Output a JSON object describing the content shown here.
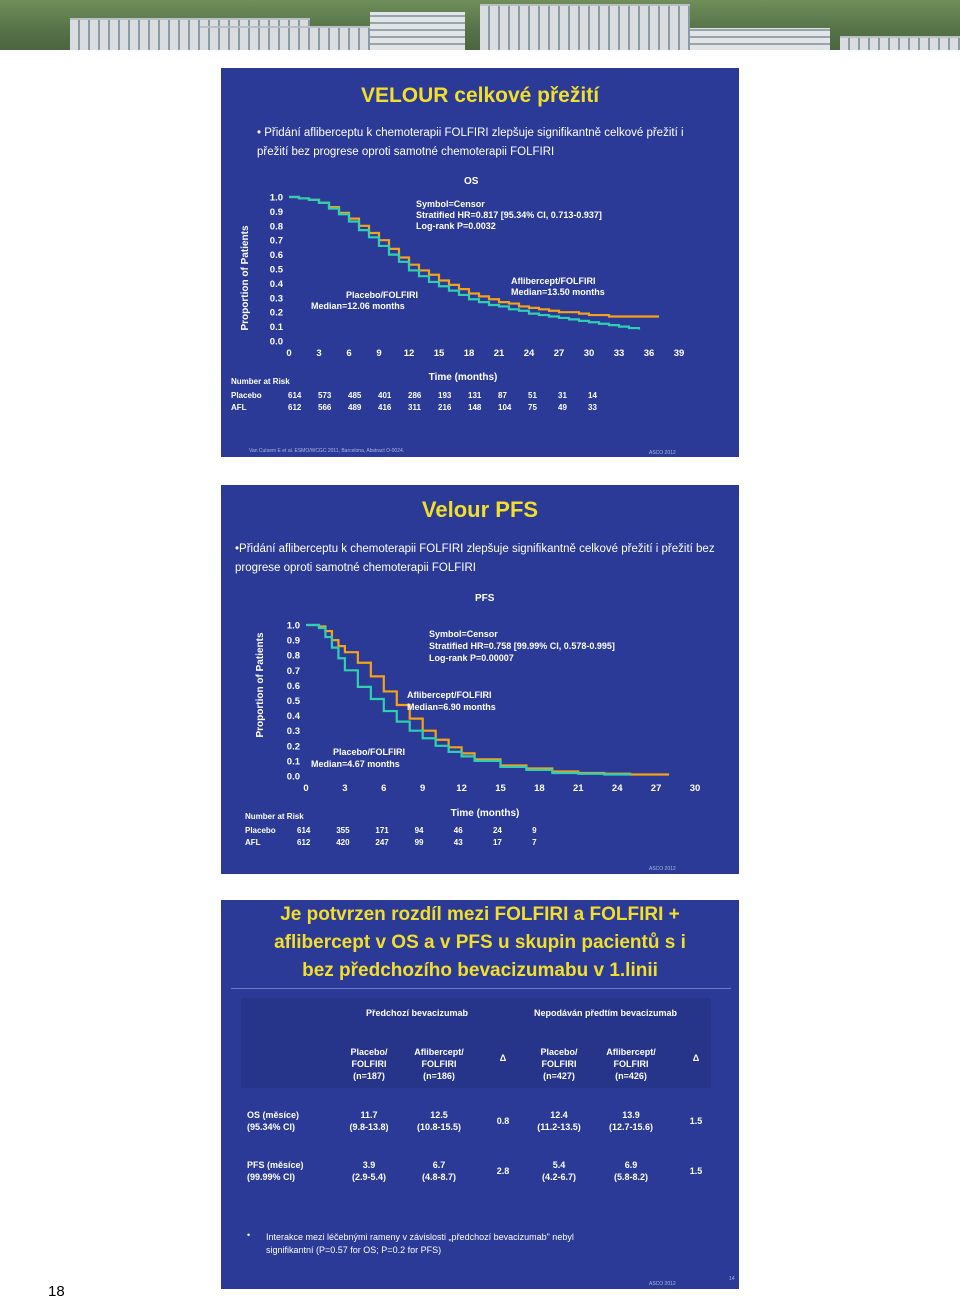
{
  "page": {
    "number": "18"
  },
  "colors": {
    "slide_bg": "#2b3a96",
    "title_yellow": "#f2df2a",
    "aflibercept": "#f5a21a",
    "placebo": "#2fd0b0"
  },
  "slide1": {
    "title": "VELOUR celkové přežití",
    "bullet": "• Přidání afliberceptu k chemoterapii FOLFIRI zlepšuje signifikantně celkové přežití i přežití bez progrese oproti samotné chemoterapii FOLFIRI",
    "plot_title": "OS",
    "stats": [
      "Symbol=Censor",
      "Stratified HR=0.817 [95.34% CI, 0.713-0.937]",
      "Log-rank P=0.0032"
    ],
    "ylabel": "Proportion of Patients",
    "xlabel": "Time (months)",
    "afl_label": [
      "Aflibercept/FOLFIRI",
      "Median=13.50 months"
    ],
    "pla_label": [
      "Placebo/FOLFIRI",
      "Median=12.06 months"
    ],
    "risk": {
      "header": "Number at Risk",
      "rows": [
        {
          "label": "Placebo",
          "values": [
            "614",
            "573",
            "485",
            "401",
            "286",
            "193",
            "131",
            "87",
            "51",
            "31",
            "14"
          ]
        },
        {
          "label": "AFL",
          "values": [
            "612",
            "566",
            "489",
            "416",
            "311",
            "216",
            "148",
            "104",
            "75",
            "49",
            "33"
          ]
        }
      ]
    },
    "footer_left": "Van Cutsem E et al. ESMO/WCGC 2011, Barcelona, Abstract O-0024.",
    "footer_right": "ASCO 2012"
  },
  "slide2": {
    "title": "Velour PFS",
    "bullet": "•Přidání afliberceptu k chemoterapii FOLFIRI zlepšuje signifikantně celkové přežití i přežití bez progrese oproti samotné chemoterapii FOLFIRI",
    "plot_title": "PFS",
    "stats": [
      "Symbol=Censor",
      "Stratified HR=0.758 [99.99% CI, 0.578-0.995]",
      "Log-rank P=0.00007"
    ],
    "ylabel": "Proportion of Patients",
    "xlabel": "Time (months)",
    "afl_label": [
      "Aflibercept/FOLFIRI",
      "Median=6.90 months"
    ],
    "pla_label": [
      "Placebo/FOLFIRI",
      "Median=4.67 months"
    ],
    "risk": {
      "header": "Number at Risk",
      "rows": [
        {
          "label": "Placebo",
          "values": [
            "614",
            "355",
            "171",
            "94",
            "46",
            "24",
            "9"
          ]
        },
        {
          "label": "AFL",
          "values": [
            "612",
            "420",
            "247",
            "99",
            "43",
            "17",
            "7"
          ]
        }
      ]
    },
    "footer_right": "ASCO 2012"
  },
  "slide3": {
    "title_lines": [
      "Je potvrzen rozdíl mezi FOLFIRI a FOLFIRI +",
      "aflibercept v OS a v PFS u skupin pacientů s i",
      "bez předchozího bevacizumabu v 1.linii"
    ],
    "group_headers": [
      "Předchozí bevacizumab",
      "Nepodáván předtím bevacizumab"
    ],
    "col_headers": [
      [
        "Placebo/",
        "FOLFIRI",
        "(n=187)"
      ],
      [
        "Aflibercept/",
        "FOLFIRI",
        "(n=186)"
      ],
      [
        "Δ"
      ],
      [
        "Placebo/",
        "FOLFIRI",
        "(n=427)"
      ],
      [
        "Aflibercept/",
        "FOLFIRI",
        "(n=426)"
      ],
      [
        "Δ"
      ]
    ],
    "rows": [
      {
        "label": [
          "OS (měsíce)",
          "(95.34% CI)"
        ],
        "cells": [
          [
            "11.7",
            "(9.8-13.8)"
          ],
          [
            "12.5",
            "(10.8-15.5)"
          ],
          [
            "0.8"
          ],
          [
            "12.4",
            "(11.2-13.5)"
          ],
          [
            "13.9",
            "(12.7-15.6)"
          ],
          [
            "1.5"
          ]
        ]
      },
      {
        "label": [
          "PFS (měsíce)",
          "(99.99% CI)"
        ],
        "cells": [
          [
            "3.9",
            "(2.9-5.4)"
          ],
          [
            "6.7",
            "(4.8-8.7)"
          ],
          [
            "2.8"
          ],
          [
            "5.4",
            "(4.2-6.7)"
          ],
          [
            "6.9",
            "(5.8-8.2)"
          ],
          [
            "1.5"
          ]
        ]
      }
    ],
    "note_lines": [
      "Interakce mezi léčebnými rameny v závislosti „předchozí bevacizumab\" nebyl",
      "signifikantní (P=0.57 for OS; P=0.2 for PFS)"
    ],
    "footer_right": "ASCO 2012",
    "slide_num": "14"
  },
  "chart_data": [
    {
      "type": "line",
      "title": "OS",
      "xlabel": "Time (months)",
      "ylabel": "Proportion of Patients",
      "xlim": [
        0,
        39
      ],
      "ylim": [
        0,
        1
      ],
      "x_ticks": [
        "0",
        "3",
        "6",
        "9",
        "12",
        "15",
        "18",
        "21",
        "24",
        "27",
        "30",
        "33",
        "36",
        "39"
      ],
      "y_ticks": [
        "0.0",
        "0.1",
        "0.2",
        "0.3",
        "0.4",
        "0.5",
        "0.6",
        "0.7",
        "0.8",
        "0.9",
        "1.0"
      ],
      "series": [
        {
          "name": "Aflibercept/FOLFIRI",
          "color": "#f5a21a",
          "x": [
            0,
            1,
            2,
            3,
            4,
            5,
            6,
            7,
            8,
            9,
            10,
            11,
            12,
            13,
            14,
            15,
            16,
            17,
            18,
            19,
            20,
            21,
            22,
            23,
            24,
            25,
            26,
            27,
            28,
            29,
            30,
            31,
            32,
            33,
            35,
            37
          ],
          "y": [
            1.0,
            0.99,
            0.98,
            0.96,
            0.93,
            0.89,
            0.85,
            0.8,
            0.75,
            0.7,
            0.64,
            0.58,
            0.53,
            0.49,
            0.46,
            0.42,
            0.39,
            0.36,
            0.33,
            0.31,
            0.29,
            0.27,
            0.26,
            0.24,
            0.23,
            0.22,
            0.21,
            0.2,
            0.2,
            0.19,
            0.18,
            0.18,
            0.17,
            0.17,
            0.17,
            0.17
          ]
        },
        {
          "name": "Placebo/FOLFIRI",
          "color": "#2fd0b0",
          "x": [
            0,
            1,
            2,
            3,
            4,
            5,
            6,
            7,
            8,
            9,
            10,
            11,
            12,
            13,
            14,
            15,
            16,
            17,
            18,
            19,
            20,
            21,
            22,
            23,
            24,
            25,
            26,
            27,
            28,
            29,
            30,
            31,
            32,
            33,
            34,
            35
          ],
          "y": [
            1.0,
            0.99,
            0.98,
            0.96,
            0.92,
            0.88,
            0.83,
            0.77,
            0.72,
            0.66,
            0.6,
            0.55,
            0.49,
            0.45,
            0.41,
            0.38,
            0.35,
            0.32,
            0.29,
            0.27,
            0.25,
            0.24,
            0.22,
            0.21,
            0.19,
            0.18,
            0.17,
            0.16,
            0.15,
            0.14,
            0.13,
            0.12,
            0.11,
            0.1,
            0.09,
            0.08
          ]
        }
      ]
    },
    {
      "type": "line",
      "title": "PFS",
      "xlabel": "Time (months)",
      "ylabel": "Proportion of Patients",
      "xlim": [
        0,
        30
      ],
      "ylim": [
        0,
        1
      ],
      "x_ticks": [
        "0",
        "3",
        "6",
        "9",
        "12",
        "15",
        "18",
        "21",
        "24",
        "27",
        "30"
      ],
      "y_ticks": [
        "0.0",
        "0.1",
        "0.2",
        "0.3",
        "0.4",
        "0.5",
        "0.6",
        "0.7",
        "0.8",
        "0.9",
        "1.0"
      ],
      "series": [
        {
          "name": "Aflibercept/FOLFIRI",
          "color": "#f5a21a",
          "x": [
            0,
            1,
            1.5,
            2,
            2.5,
            3,
            4,
            5,
            6,
            7,
            8,
            9,
            10,
            11,
            12,
            13,
            15,
            17,
            19,
            21,
            23,
            25,
            27,
            28
          ],
          "y": [
            1.0,
            0.99,
            0.96,
            0.9,
            0.86,
            0.82,
            0.75,
            0.66,
            0.56,
            0.47,
            0.38,
            0.3,
            0.24,
            0.19,
            0.15,
            0.11,
            0.07,
            0.05,
            0.03,
            0.02,
            0.015,
            0.01,
            0.01,
            0.01
          ]
        },
        {
          "name": "Placebo/FOLFIRI",
          "color": "#2fd0b0",
          "x": [
            0,
            1,
            1.5,
            2,
            2.5,
            3,
            4,
            5,
            6,
            7,
            8,
            9,
            10,
            11,
            12,
            13,
            15,
            17,
            19,
            21,
            23,
            25
          ],
          "y": [
            1.0,
            0.98,
            0.92,
            0.85,
            0.78,
            0.7,
            0.59,
            0.51,
            0.43,
            0.36,
            0.3,
            0.25,
            0.2,
            0.16,
            0.13,
            0.1,
            0.06,
            0.04,
            0.02,
            0.015,
            0.01,
            0.005
          ]
        }
      ]
    }
  ]
}
